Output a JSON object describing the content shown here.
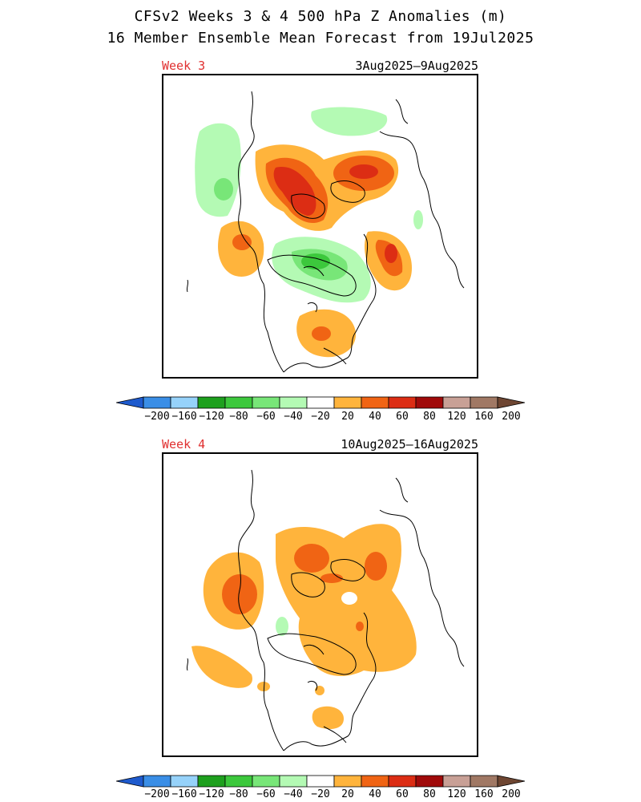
{
  "header": {
    "title_line1": "CFSv2 Weeks 3 & 4 500 hPa Z Anomalies (m)",
    "title_line2": "16 Member Ensemble Mean Forecast from 19Jul2025"
  },
  "panels": [
    {
      "week_label": "Week 3",
      "date_range": "3Aug2025–9Aug2025"
    },
    {
      "week_label": "Week 4",
      "date_range": "10Aug2025–16Aug2025"
    }
  ],
  "colorbar": {
    "labels": [
      "−200",
      "−160",
      "−120",
      "−80",
      "−60",
      "−40",
      "−20",
      "20",
      "40",
      "60",
      "80",
      "120",
      "160",
      "200"
    ],
    "colors": [
      "#3a8ee6",
      "#96d2fa",
      "#1ea01e",
      "#3cc83c",
      "#78e678",
      "#b4fab4",
      "#ffffff",
      "#ffb43c",
      "#f06414",
      "#dc2d14",
      "#a00a0a",
      "#c8a096",
      "#a07864"
    ],
    "low_arrow_color": "#1e5acd",
    "high_arrow_color": "#6e4632"
  }
}
